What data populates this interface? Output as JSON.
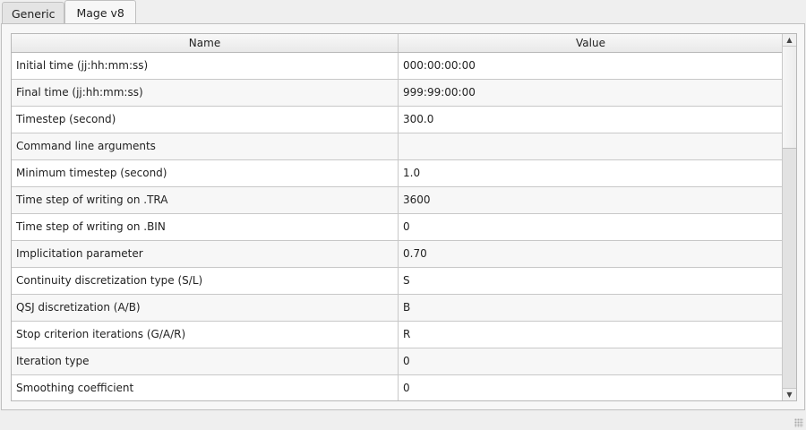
{
  "tabs": [
    {
      "label": "Generic",
      "active": false
    },
    {
      "label": "Mage v8",
      "active": true
    }
  ],
  "table": {
    "headers": [
      "Name",
      "Value"
    ],
    "rows": [
      {
        "name": "Initial time (jj:hh:mm:ss)",
        "value": "000:00:00:00"
      },
      {
        "name": "Final time (jj:hh:mm:ss)",
        "value": "999:99:00:00"
      },
      {
        "name": "Timestep (second)",
        "value": "300.0"
      },
      {
        "name": "Command line arguments",
        "value": ""
      },
      {
        "name": "Minimum timestep (second)",
        "value": "1.0"
      },
      {
        "name": "Time step of writing on .TRA",
        "value": "3600"
      },
      {
        "name": "Time step of writing on .BIN",
        "value": "0"
      },
      {
        "name": "Implicitation parameter",
        "value": "0.70"
      },
      {
        "name": "Continuity discretization type (S/L)",
        "value": "S"
      },
      {
        "name": "QSJ discretization (A/B)",
        "value": "B"
      },
      {
        "name": "Stop criterion iterations (G/A/R)",
        "value": "R"
      },
      {
        "name": "Iteration type",
        "value": "0"
      },
      {
        "name": "Smoothing coefficient",
        "value": "0"
      }
    ]
  },
  "icons": {
    "scroll_up": "triangle-up-icon",
    "scroll_down": "triangle-down-icon",
    "resize": "size-grip-icon"
  }
}
